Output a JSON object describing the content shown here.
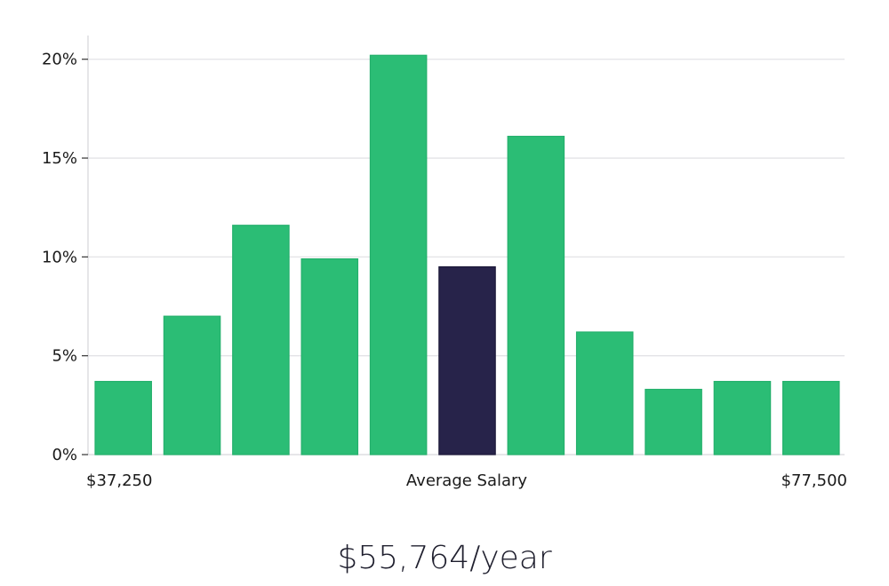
{
  "chart_data": {
    "type": "bar",
    "xlabel": "Average Salary",
    "x_start_label": "$37,250",
    "x_end_label": "$77,500",
    "values": [
      3.7,
      7.0,
      11.6,
      9.9,
      20.2,
      9.5,
      16.1,
      6.2,
      3.3,
      3.7,
      3.7
    ],
    "highlight_index": 5,
    "y_ticks": [
      "0%",
      "5%",
      "10%",
      "15%",
      "20%"
    ],
    "y_tick_values": [
      0,
      5,
      10,
      15,
      20
    ],
    "ylim": [
      0,
      21.2
    ],
    "grid": true,
    "colors": {
      "bar": "#2bbd75",
      "highlight": "#27234a",
      "grid": "#e3e3e6",
      "axis": "#d8d8dc"
    }
  },
  "summary": {
    "salary_text": "$55,764/year"
  }
}
